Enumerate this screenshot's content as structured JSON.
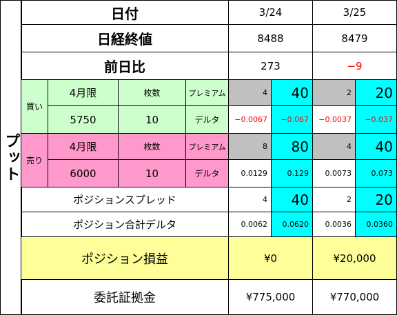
{
  "side_label": "プット",
  "rows": {
    "date": {
      "label": "日付",
      "d1": "3/24",
      "d2": "3/25"
    },
    "nikkei": {
      "label": "日経終値",
      "d1": "8488",
      "d2": "8479"
    },
    "change": {
      "label": "前日比",
      "d1": "273",
      "d2": "−9"
    }
  },
  "buy": {
    "label": "買い",
    "month": "4月限",
    "qty_label": "枚数",
    "premium_label": "プレミアム",
    "strike": "5750",
    "qty": "10",
    "delta_label": "デルタ",
    "premium": {
      "d1_unit": "4",
      "d1_total": "40",
      "d2_unit": "2",
      "d2_total": "20"
    },
    "delta": {
      "d1_unit": "−0.0067",
      "d1_total": "−0.067",
      "d2_unit": "−0.0037",
      "d2_total": "−0.037"
    }
  },
  "sell": {
    "label": "売り",
    "month": "4月限",
    "qty_label": "枚数",
    "premium_label": "プレミアム",
    "strike": "6000",
    "qty": "10",
    "delta_label": "デルタ",
    "premium": {
      "d1_unit": "8",
      "d1_total": "80",
      "d2_unit": "4",
      "d2_total": "40"
    },
    "delta": {
      "d1_unit": "0.0129",
      "d1_total": "0.129",
      "d2_unit": "0.0073",
      "d2_total": "0.073"
    }
  },
  "spread": {
    "label": "ポジションスプレッド",
    "d1_unit": "4",
    "d1_total": "40",
    "d2_unit": "2",
    "d2_total": "20"
  },
  "total_delta": {
    "label": "ポジション合計デルタ",
    "d1_unit": "0.0062",
    "d1_total": "0.0620",
    "d2_unit": "0.0036",
    "d2_total": "0.0360"
  },
  "pnl": {
    "label": "ポジション損益",
    "d1": "¥0",
    "d2": "¥20,000"
  },
  "margin": {
    "label": "委託証拠金",
    "d1": "¥775,000",
    "d2": "¥770,000"
  },
  "colors": {
    "buy_bg": "#ccffcc",
    "sell_bg": "#ff99cc",
    "gray": "#c0c0c0",
    "cyan": "#00ffff",
    "yellow": "#ffff99",
    "negative": "#ff0000"
  }
}
